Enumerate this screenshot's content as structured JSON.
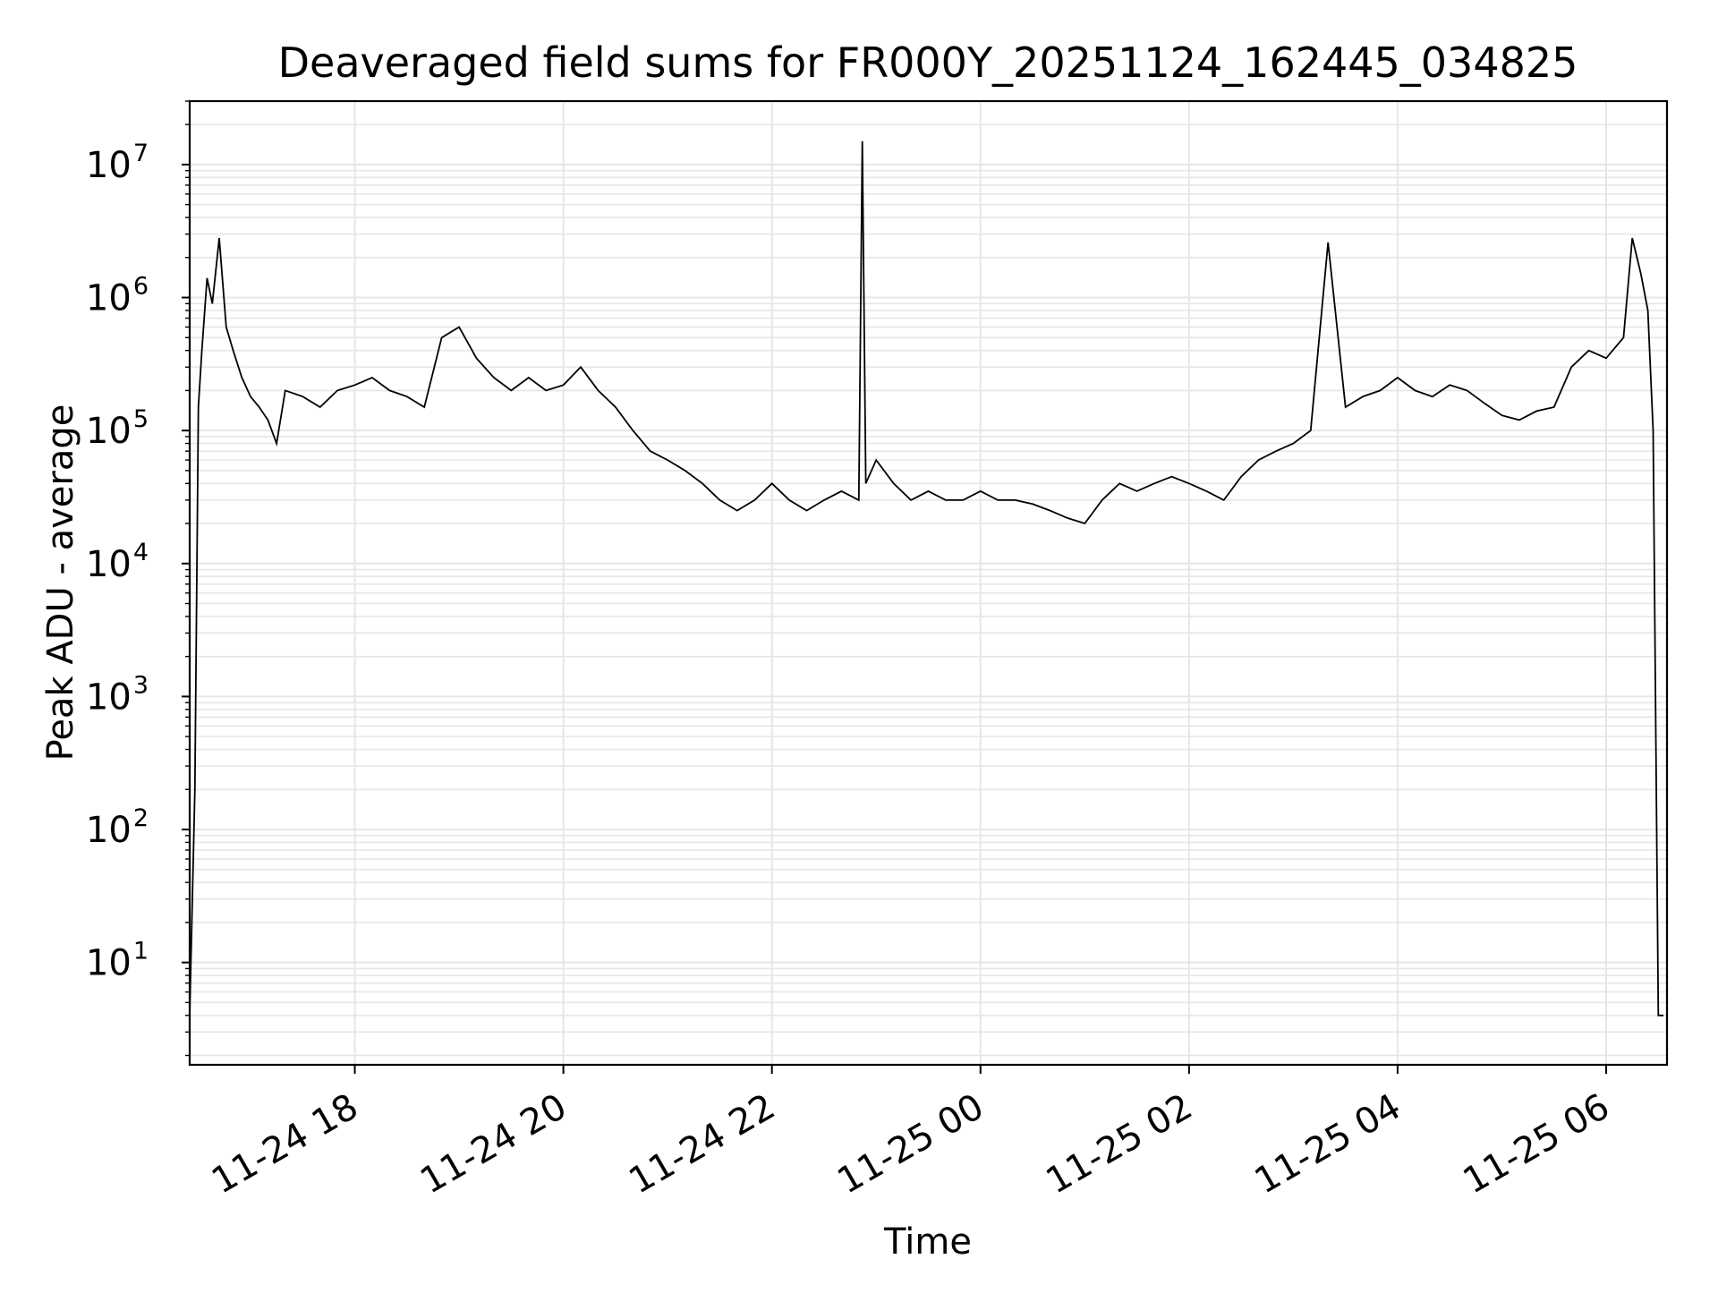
{
  "chart_data": {
    "type": "line",
    "title": "Deaveraged field sums for FR000Y_20251124_162445_034825",
    "xlabel": "Time",
    "ylabel": "Peak ADU - average",
    "x_ticks": [
      "11-24 18",
      "11-24 20",
      "11-24 22",
      "11-25 00",
      "11-25 02",
      "11-25 04",
      "11-25 06"
    ],
    "y_ticks": [
      {
        "base": "10",
        "exp": "1"
      },
      {
        "base": "10",
        "exp": "2"
      },
      {
        "base": "10",
        "exp": "3"
      },
      {
        "base": "10",
        "exp": "4"
      },
      {
        "base": "10",
        "exp": "5"
      },
      {
        "base": "10",
        "exp": "6"
      },
      {
        "base": "10",
        "exp": "7"
      }
    ],
    "xlim": [
      "2025-11-24 16:25",
      "2025-11-25 06:35"
    ],
    "ylim": [
      1.7,
      30000000
    ],
    "yscale": "log",
    "grid": true,
    "line_color": "#000000",
    "grid_color": "#e6e6e6",
    "series": [
      {
        "x": [
          "2025-11-24 16:25",
          "2025-11-24 16:28",
          "2025-11-24 16:30",
          "2025-11-24 16:32",
          "2025-11-24 16:35",
          "2025-11-24 16:38",
          "2025-11-24 16:42",
          "2025-11-24 16:46",
          "2025-11-24 16:50",
          "2025-11-24 16:55",
          "2025-11-24 17:00",
          "2025-11-24 17:05",
          "2025-11-24 17:10",
          "2025-11-24 17:15",
          "2025-11-24 17:20",
          "2025-11-24 17:30",
          "2025-11-24 17:40",
          "2025-11-24 17:50",
          "2025-11-24 18:00",
          "2025-11-24 18:10",
          "2025-11-24 18:20",
          "2025-11-24 18:30",
          "2025-11-24 18:40",
          "2025-11-24 18:50",
          "2025-11-24 19:00",
          "2025-11-24 19:10",
          "2025-11-24 19:20",
          "2025-11-24 19:30",
          "2025-11-24 19:40",
          "2025-11-24 19:50",
          "2025-11-24 20:00",
          "2025-11-24 20:10",
          "2025-11-24 20:20",
          "2025-11-24 20:30",
          "2025-11-24 20:40",
          "2025-11-24 20:50",
          "2025-11-24 21:00",
          "2025-11-24 21:10",
          "2025-11-24 21:20",
          "2025-11-24 21:30",
          "2025-11-24 21:40",
          "2025-11-24 21:50",
          "2025-11-24 22:00",
          "2025-11-24 22:10",
          "2025-11-24 22:20",
          "2025-11-24 22:30",
          "2025-11-24 22:40",
          "2025-11-24 22:50",
          "2025-11-24 22:52",
          "2025-11-24 22:54",
          "2025-11-24 23:00",
          "2025-11-24 23:10",
          "2025-11-24 23:20",
          "2025-11-24 23:30",
          "2025-11-24 23:40",
          "2025-11-24 23:50",
          "2025-11-25 00:00",
          "2025-11-25 00:10",
          "2025-11-25 00:20",
          "2025-11-25 00:30",
          "2025-11-25 00:40",
          "2025-11-25 00:50",
          "2025-11-25 01:00",
          "2025-11-25 01:10",
          "2025-11-25 01:20",
          "2025-11-25 01:30",
          "2025-11-25 01:40",
          "2025-11-25 01:50",
          "2025-11-25 02:00",
          "2025-11-25 02:10",
          "2025-11-25 02:20",
          "2025-11-25 02:30",
          "2025-11-25 02:40",
          "2025-11-25 02:50",
          "2025-11-25 03:00",
          "2025-11-25 03:10",
          "2025-11-25 03:20",
          "2025-11-25 03:30",
          "2025-11-25 03:40",
          "2025-11-25 03:50",
          "2025-11-25 04:00",
          "2025-11-25 04:10",
          "2025-11-25 04:20",
          "2025-11-25 04:30",
          "2025-11-25 04:40",
          "2025-11-25 04:50",
          "2025-11-25 05:00",
          "2025-11-25 05:10",
          "2025-11-25 05:20",
          "2025-11-25 05:30",
          "2025-11-25 05:40",
          "2025-11-25 05:50",
          "2025-11-25 06:00",
          "2025-11-25 06:10",
          "2025-11-25 06:15",
          "2025-11-25 06:20",
          "2025-11-25 06:24",
          "2025-11-25 06:27",
          "2025-11-25 06:30",
          "2025-11-25 06:33"
        ],
        "y": [
          4,
          200,
          150000,
          400000,
          1400000,
          900000,
          2800000,
          600000,
          400000,
          250000,
          180000,
          150000,
          120000,
          80000,
          200000,
          180000,
          150000,
          200000,
          220000,
          250000,
          200000,
          180000,
          150000,
          500000,
          600000,
          350000,
          250000,
          200000,
          250000,
          200000,
          220000,
          300000,
          200000,
          150000,
          100000,
          70000,
          60000,
          50000,
          40000,
          30000,
          25000,
          30000,
          40000,
          30000,
          25000,
          30000,
          35000,
          30000,
          15000000,
          40000,
          60000,
          40000,
          30000,
          35000,
          30000,
          30000,
          35000,
          30000,
          30000,
          28000,
          25000,
          22000,
          20000,
          30000,
          40000,
          35000,
          40000,
          45000,
          40000,
          35000,
          30000,
          45000,
          60000,
          70000,
          80000,
          100000,
          2600000,
          150000,
          180000,
          200000,
          250000,
          200000,
          180000,
          220000,
          200000,
          160000,
          130000,
          120000,
          140000,
          150000,
          300000,
          400000,
          350000,
          500000,
          2800000,
          1500000,
          800000,
          100000,
          4,
          4
        ]
      }
    ]
  }
}
